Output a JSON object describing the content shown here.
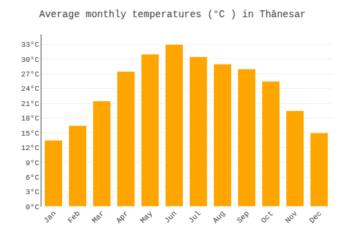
{
  "chart_data": {
    "type": "bar",
    "title": "Average monthly temperatures (°C ) in Thānesar",
    "categories": [
      "Jan",
      "Feb",
      "Mar",
      "Apr",
      "May",
      "Jun",
      "Jul",
      "Aug",
      "Sep",
      "Oct",
      "Nov",
      "Dec"
    ],
    "values": [
      13.5,
      16.5,
      21.5,
      27.5,
      31.0,
      33.0,
      30.5,
      29.0,
      28.0,
      25.5,
      19.5,
      15.0
    ],
    "color": "#FFA500",
    "ylim": [
      0,
      35
    ],
    "yticks": [
      {
        "value": 0,
        "label": "0°C"
      },
      {
        "value": 3,
        "label": "3°C"
      },
      {
        "value": 6,
        "label": "6°C"
      },
      {
        "value": 9,
        "label": "9°C"
      },
      {
        "value": 12,
        "label": "12°C"
      },
      {
        "value": 15,
        "label": "15°C"
      },
      {
        "value": 18,
        "label": "18°C"
      },
      {
        "value": 21,
        "label": "21°C"
      },
      {
        "value": 24,
        "label": "24°C"
      },
      {
        "value": 27,
        "label": "27°C"
      },
      {
        "value": 30,
        "label": "30°C"
      },
      {
        "value": 33,
        "label": "33°C"
      }
    ],
    "grid": true
  }
}
